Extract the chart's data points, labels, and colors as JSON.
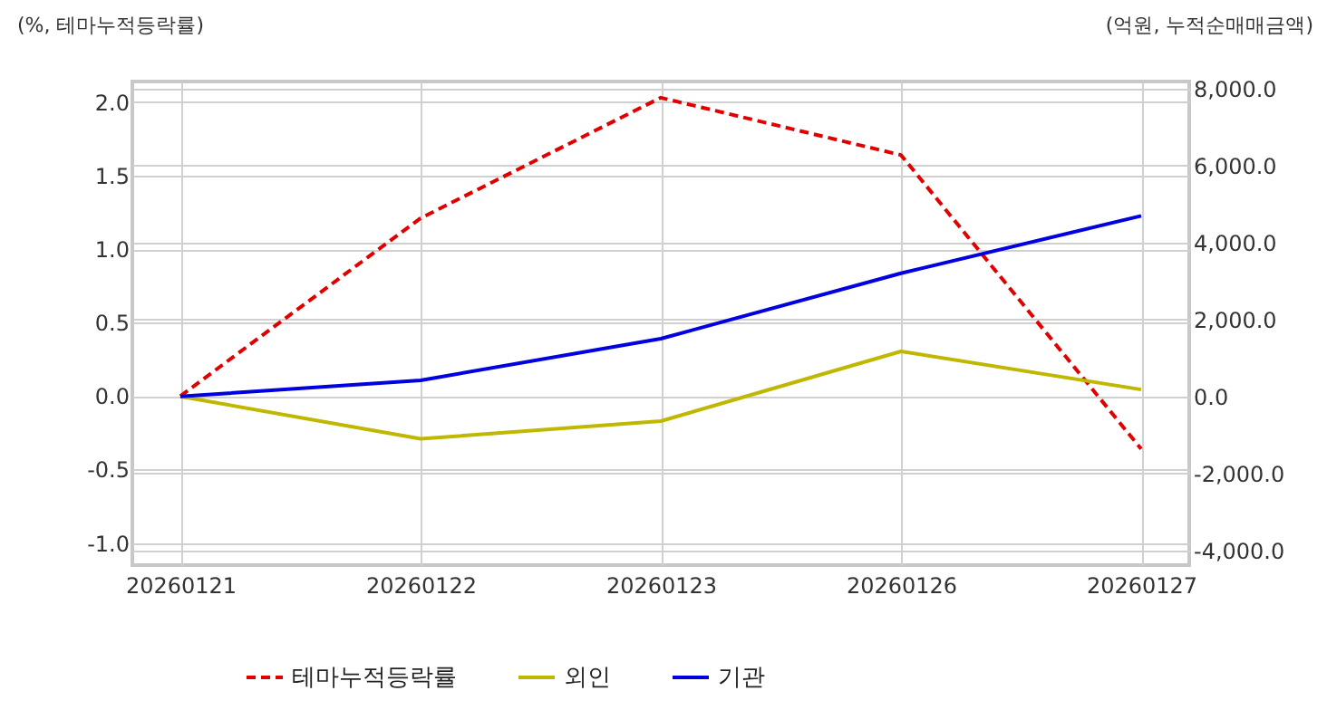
{
  "chart_data": {
    "type": "line",
    "ylabel": "(%, 테마누적등락률)",
    "y2label": "(억원, 누적순매매금액)",
    "categories": [
      "20260121",
      "20260122",
      "20260123",
      "20260126",
      "20260127"
    ],
    "series": [
      {
        "name": "테마누적등락률",
        "color": "#e00000",
        "line_style": "dashed",
        "values": [
          0,
          1.21,
          2.03,
          1.64,
          -0.36
        ]
      },
      {
        "name": "외인",
        "color": "#c0b800",
        "axis": "y2",
        "values": [
          0,
          -1100,
          -640,
          1170,
          180
        ]
      },
      {
        "name": "기관",
        "color": "#0000e0",
        "axis": "y2",
        "values": [
          0,
          420,
          1500,
          3200,
          4690
        ]
      }
    ],
    "ylim": [
      -1.15,
      2.14
    ],
    "yticks": [
      {
        "value": -1,
        "label": "-1.0"
      },
      {
        "value": -0.5,
        "label": "-0.5"
      },
      {
        "value": 0,
        "label": "0.0"
      },
      {
        "value": 0.5,
        "label": "0.5"
      },
      {
        "value": 1,
        "label": "1.0"
      },
      {
        "value": 1.5,
        "label": "1.5"
      },
      {
        "value": 2,
        "label": "2.0"
      }
    ],
    "y2lim": [
      -4380,
      8180
    ],
    "y2ticks": [
      {
        "value": -4000,
        "label": "-4,000.0"
      },
      {
        "value": -2000,
        "label": "-2,000.0"
      },
      {
        "value": 0,
        "label": "0.0"
      },
      {
        "value": 2000,
        "label": "2,000.0"
      },
      {
        "value": 4000,
        "label": "4,000.0"
      },
      {
        "value": 6000,
        "label": "6,000.0"
      },
      {
        "value": 8000,
        "label": "8,000.0"
      }
    ],
    "grid": true,
    "legend": "bottom",
    "marker": "none",
    "line_style": "solid"
  }
}
